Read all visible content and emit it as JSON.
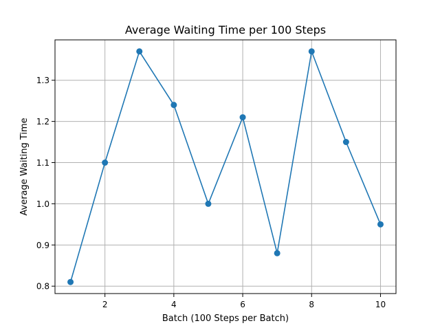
{
  "chart_data": {
    "type": "line",
    "title": "Average Waiting Time per 100 Steps",
    "xlabel": "Batch (100 Steps per Batch)",
    "ylabel": "Average Waiting Time",
    "xlim": [
      0.55,
      10.45
    ],
    "ylim": [
      0.782,
      1.398
    ],
    "xticks": [
      2,
      4,
      6,
      8,
      10
    ],
    "yticks": [
      0.8,
      0.9,
      1.0,
      1.1,
      1.2,
      1.3
    ],
    "ytick_labels": [
      "0.8",
      "0.9",
      "1.0",
      "1.1",
      "1.2",
      "1.3"
    ],
    "grid": true,
    "x": [
      1,
      2,
      3,
      4,
      5,
      6,
      7,
      8,
      9,
      10
    ],
    "series": [
      {
        "values": [
          0.81,
          1.1,
          1.37,
          1.24,
          1.0,
          1.21,
          0.88,
          1.37,
          1.15,
          0.95
        ],
        "color": "#1f77b4",
        "marker": "circle"
      }
    ]
  }
}
